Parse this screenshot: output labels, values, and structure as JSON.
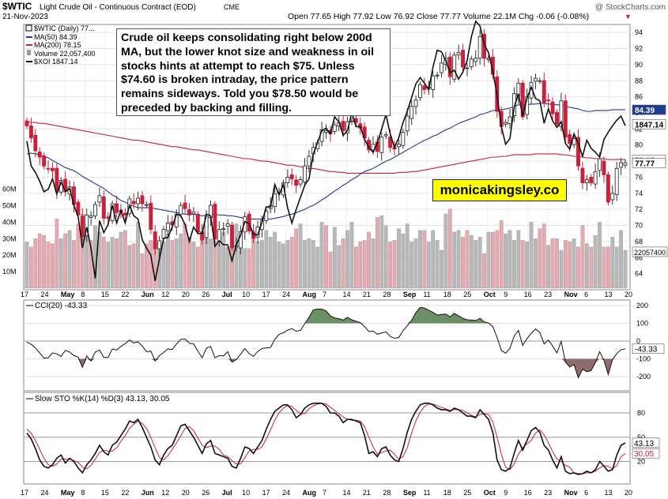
{
  "header": {
    "symbol": "$WTIC",
    "name": "Light Crude Oil - Continuous Contract (EOD)",
    "exchange": "CME",
    "date": "21-Nov-2023",
    "watermark": "@ StockCharts.com",
    "quote": "Open 77.65  High 77.92  Low 76.92  Close 77.77  Volume 22.1M  Chg -0.06 (-0.08%)",
    "chg_marker": "▼"
  },
  "legend": {
    "price": "$WTIC (Daily) 77...",
    "ma50": "MA(50) 84.39",
    "ma200": "MA(200) 78.15",
    "volume": "Volume 22,057,400",
    "xoi": "$XOI 1847.14"
  },
  "annotation": "Crude oil keeps consolidating right below 200d MA, but the lower knot size and weakness in oil stocks hints at attempt to reach $75. Unless $74.60 is broken intraday, the price pattern remains sideways. Told you $78.50 would be preceded by backing and filling.",
  "brand": "monicakingsley.co",
  "colors": {
    "up": "#333333",
    "down": "#cc1f3a",
    "ma50": "#1f3a93",
    "ma200": "#cc1f3a",
    "vol_up": "#b8b8b8",
    "vol_down": "#e8a8b0",
    "cci_fill": "#6d8f66",
    "cci_neg": "#8f6d6d"
  },
  "chart_data": [
    {
      "type": "candlestick",
      "title": "$WTIC",
      "ylim": [
        62,
        95
      ],
      "y_ticks": [
        "64",
        "66",
        "68",
        "70",
        "72",
        "74",
        "76",
        "78",
        "80",
        "82",
        "84",
        "86",
        "88",
        "90",
        "92",
        "94"
      ],
      "price_badges": [
        "84.39",
        "1847.14",
        "78.15",
        "77.77"
      ],
      "volume_ticks": [
        "10M",
        "20M",
        "30M",
        "40M",
        "50M",
        "60M"
      ],
      "volume_badge": "22057400",
      "x_labels": [
        "17",
        "24",
        "May",
        "8",
        "15",
        "22",
        "Jun",
        "12",
        "20",
        "26",
        "Jul",
        "10",
        "17",
        "24",
        "Aug",
        "7",
        "14",
        "21",
        "28",
        "Sep",
        "11",
        "18",
        "25",
        "Oct",
        "9",
        "16",
        "23",
        "Nov",
        "6",
        "13",
        "20"
      ],
      "daily_closes": [
        82.4,
        80.9,
        79.3,
        78.5,
        77.4,
        77.1,
        76.8,
        74.3,
        75.6,
        74.2,
        74.8,
        72.6,
        71.3,
        68.6,
        71.3,
        71.2,
        72.6,
        73.7,
        70.9,
        70.9,
        72.7,
        71.6,
        71.7,
        71.3,
        73.3,
        72.7,
        73.4,
        72.7,
        72.6,
        69.5,
        67.1,
        68.1,
        69.5,
        70.3,
        70.1,
        71.4,
        72.5,
        72.1,
        71.3,
        71.7,
        69.2,
        68.2,
        71.1,
        72.5,
        68.3,
        69.5,
        69.6,
        70.2,
        67.2,
        67.5,
        69.2,
        71.1,
        69.3,
        68.4,
        69.8,
        70.6,
        71.8,
        72.5,
        73.9,
        74.1,
        75.3,
        76.0,
        75.8,
        75.0,
        75.7,
        77.4,
        78.6,
        79.7,
        80.3,
        81.9,
        81.8,
        81.4,
        82.5,
        82.8,
        81.8,
        82.9,
        83.0,
        82.8,
        82.1,
        80.9,
        79.4,
        80.1,
        79.2,
        81.0,
        81.3,
        79.7,
        79.5,
        80.1,
        81.6,
        83.6,
        84.8,
        85.6,
        87.5,
        86.9,
        87.2,
        88.6,
        88.7,
        90.2,
        90.8,
        88.5,
        91.2,
        91.5,
        89.7,
        89.6,
        90.7,
        90.8,
        93.5,
        90.8,
        90.8,
        88.8,
        84.2,
        82.3,
        82.8,
        83.5,
        86.4,
        87.7,
        83.5,
        86.0,
        87.8,
        88.3,
        88.0,
        85.3,
        85.5,
        83.9,
        82.6,
        85.5,
        81.0,
        80.2,
        80.8,
        77.4,
        75.3,
        75.7,
        75.3,
        76.7,
        78.3,
        76.3,
        72.9,
        74.0,
        77.1,
        77.8,
        77.8
      ],
      "ma50": [
        78.9,
        79.0,
        78.9,
        78.8,
        78.6,
        78.4,
        78.1,
        77.8,
        77.5,
        77.2,
        77.0,
        76.8,
        76.5,
        76.1,
        75.8,
        75.5,
        75.2,
        74.9,
        74.6,
        74.2,
        73.8,
        73.5,
        73.1,
        72.9,
        72.6,
        72.4,
        72.2,
        72.2,
        72.2,
        72.2,
        72.1,
        72.0,
        71.9,
        71.8,
        71.7,
        71.6,
        71.5,
        71.4,
        71.4,
        71.4,
        71.3,
        71.2,
        71.3,
        71.4,
        71.4,
        71.3,
        71.3,
        71.2,
        71.2,
        71.1,
        71.0,
        70.9,
        70.8,
        70.8,
        70.8,
        70.8,
        70.8,
        70.8,
        70.9,
        71.0,
        71.1,
        71.3,
        71.4,
        71.6,
        71.8,
        72.0,
        72.3,
        72.5,
        72.8,
        73.2,
        73.5,
        73.9,
        74.3,
        74.6,
        75.0,
        75.3,
        75.7,
        76.0,
        76.4,
        76.7,
        76.9,
        77.1,
        77.4,
        77.7,
        78.0,
        78.2,
        78.5,
        78.8,
        79.1,
        79.4,
        79.7,
        80.0,
        80.3,
        80.6,
        80.8,
        81.1,
        81.3,
        81.6,
        81.9,
        82.1,
        82.4,
        82.7,
        82.9,
        83.1,
        83.3,
        83.5,
        83.8,
        83.9,
        84.1,
        84.3,
        84.3,
        84.4,
        84.5,
        84.6,
        84.8,
        85.0,
        85.0,
        85.0,
        85.1,
        85.1,
        85.2,
        85.2,
        85.1,
        85.1,
        85.0,
        85.0,
        84.8,
        84.7,
        84.6,
        84.5,
        84.3,
        84.2,
        84.2,
        84.3,
        84.3,
        84.3,
        84.3,
        84.4,
        84.4,
        84.4,
        84.4
      ],
      "ma200": [
        82.9,
        82.8,
        82.8,
        82.7,
        82.7,
        82.6,
        82.5,
        82.4,
        82.3,
        82.2,
        82.1,
        82.0,
        81.9,
        81.8,
        81.7,
        81.6,
        81.5,
        81.4,
        81.3,
        81.2,
        81.1,
        81.0,
        80.9,
        80.8,
        80.7,
        80.6,
        80.6,
        80.5,
        80.4,
        80.3,
        80.2,
        80.1,
        80.0,
        79.9,
        79.8,
        79.8,
        79.7,
        79.6,
        79.5,
        79.4,
        79.4,
        79.3,
        79.2,
        79.1,
        79.0,
        78.9,
        78.8,
        78.7,
        78.6,
        78.5,
        78.4,
        78.3,
        78.3,
        78.2,
        78.1,
        78.0,
        78.0,
        77.9,
        77.8,
        77.7,
        77.6,
        77.5,
        77.5,
        77.4,
        77.3,
        77.2,
        77.1,
        77.1,
        77.0,
        76.9,
        76.8,
        76.7,
        76.7,
        76.6,
        76.6,
        76.5,
        76.5,
        76.5,
        76.5,
        76.5,
        76.5,
        76.5,
        76.5,
        76.5,
        76.5,
        76.5,
        76.5,
        76.6,
        76.6,
        76.6,
        76.7,
        76.7,
        76.8,
        76.9,
        77.0,
        77.1,
        77.2,
        77.3,
        77.4,
        77.5,
        77.6,
        77.7,
        77.8,
        77.9,
        78.0,
        78.1,
        78.2,
        78.3,
        78.4,
        78.5,
        78.5,
        78.6,
        78.6,
        78.7,
        78.8,
        78.8,
        78.8,
        78.8,
        78.8,
        78.9,
        78.9,
        78.9,
        78.9,
        78.9,
        78.9,
        78.8,
        78.8,
        78.7,
        78.6,
        78.6,
        78.5,
        78.4,
        78.4,
        78.3,
        78.3,
        78.3,
        78.2,
        78.2,
        78.2,
        78.2,
        78.2
      ],
      "xoi_overlay": [
        80.5,
        77.4,
        76.6,
        75.5,
        74.2,
        74.5,
        75.8,
        73.9,
        75.4,
        74.2,
        74.6,
        72.5,
        71.1,
        67.2,
        69.8,
        67.2,
        63.4,
        70.6,
        69.1,
        70.1,
        72.5,
        70.3,
        71.9,
        70.3,
        72.5,
        71.2,
        70.8,
        68.2,
        67.2,
        66.3,
        63.1,
        65.8,
        68.4,
        68.5,
        69.8,
        71.4,
        71.2,
        70.1,
        68.0,
        69.8,
        69.0,
        69.0,
        71.4,
        71.2,
        67.4,
        68.1,
        67.6,
        67.6,
        65.6,
        67.6,
        68.8,
        70.5,
        70.2,
        68.9,
        68.8,
        70.4,
        72.3,
        72.3,
        75.1,
        73.8,
        75.1,
        72.2,
        70.3,
        72.0,
        73.5,
        75.0,
        75.8,
        78.9,
        80.3,
        81.8,
        82.1,
        81.4,
        83.5,
        82.9,
        81.2,
        81.8,
        84.0,
        82.3,
        82.3,
        80.7,
        79.7,
        79.1,
        80.3,
        82.0,
        83.8,
        81.4,
        79.7,
        80.9,
        82.8,
        84.2,
        85.9,
        87.6,
        88.4,
        87.7,
        86.9,
        89.7,
        91.8,
        91.6,
        90.5,
        89.0,
        89.3,
        88.2,
        89.1,
        90.5,
        93.5,
        95.4,
        94.8,
        92.5,
        91.5,
        89.2,
        86.2,
        82.3,
        80.1,
        80.8,
        84.7,
        86.4,
        83.6,
        85.8,
        87.2,
        85.8,
        85.5,
        82.7,
        84.5,
        83.0,
        82.2,
        82.9,
        80.2,
        79.5,
        81.4,
        80.2,
        78.6,
        80.6,
        79.6,
        79.1,
        78.5,
        80.7,
        81.6,
        82.4,
        83.1,
        83.6,
        82.4
      ],
      "volume_m": [
        28,
        25,
        30,
        33,
        32,
        28,
        27,
        42,
        30,
        33,
        35,
        29,
        39,
        45,
        40,
        29,
        38,
        34,
        31,
        28,
        31,
        30,
        34,
        35,
        26,
        27,
        40,
        21,
        27,
        29,
        26,
        27,
        28,
        33,
        29,
        30,
        33,
        39,
        31,
        28,
        25,
        32,
        37,
        30,
        28,
        27,
        34,
        25,
        30,
        39,
        28,
        24,
        24,
        35,
        28,
        29,
        35,
        31,
        34,
        28,
        27,
        29,
        31,
        36,
        39,
        29,
        30,
        29,
        25,
        40,
        38,
        22,
        37,
        26,
        30,
        35,
        40,
        25,
        28,
        29,
        34,
        30,
        43,
        44,
        38,
        28,
        29,
        36,
        33,
        39,
        28,
        30,
        35,
        35,
        28,
        35,
        29,
        23,
        45,
        48,
        34,
        35,
        31,
        35,
        32,
        29,
        31,
        21,
        34,
        34,
        35,
        41,
        33,
        35,
        29,
        35,
        29,
        28,
        40,
        30,
        36,
        39,
        26,
        30,
        30,
        23,
        29,
        28,
        30,
        25,
        38,
        27,
        25,
        32,
        40,
        25,
        25,
        31,
        25,
        35,
        23
      ]
    },
    {
      "type": "line",
      "title": "CCI(20) -43.33",
      "ylim": [
        -250,
        250
      ],
      "y_ticks": [
        "200",
        "100",
        "0",
        "-100",
        "-200"
      ],
      "badge": "-43.33",
      "series": [
        {
          "name": "CCI(20)",
          "values": [
            -6,
            -18,
            -38,
            -66,
            -96,
            -94,
            -66,
            -72,
            -86,
            -52,
            -62,
            -82,
            -90,
            -148,
            -84,
            -112,
            -62,
            -50,
            -92,
            -92,
            -44,
            -50,
            -30,
            -14,
            6,
            -10,
            -4,
            -28,
            -60,
            -56,
            -112,
            -82,
            -64,
            -44,
            -48,
            -16,
            10,
            12,
            -12,
            -16,
            -56,
            -94,
            -40,
            -30,
            -94,
            -82,
            -84,
            -60,
            -118,
            -104,
            -74,
            -42,
            -70,
            -86,
            -58,
            -42,
            -38,
            -36,
            10,
            38,
            46,
            62,
            70,
            56,
            60,
            98,
            134,
            176,
            180,
            180,
            170,
            142,
            130,
            126,
            118,
            134,
            120,
            112,
            104,
            82,
            54,
            56,
            38,
            46,
            52,
            26,
            16,
            20,
            58,
            86,
            116,
            160,
            190,
            186,
            174,
            162,
            146,
            150,
            152,
            136,
            156,
            142,
            128,
            120,
            118,
            116,
            128,
            108,
            102,
            82,
            20,
            -52,
            -68,
            -42,
            28,
            60,
            -24,
            14,
            44,
            68,
            48,
            -16,
            6,
            -28,
            -66,
            -2,
            -118,
            -146,
            -132,
            -206,
            -158,
            -172,
            -166,
            -120,
            -60,
            -108,
            -188,
            -104,
            -70,
            -48,
            -43
          ]
        }
      ]
    },
    {
      "type": "line",
      "title": "Slow STO %K(14) %D(3) 43.13, 30.05",
      "ylim": [
        0,
        100
      ],
      "y_ticks": [
        "80",
        "50",
        "20"
      ],
      "badges": [
        "43.13",
        "30.05"
      ],
      "series": [
        {
          "name": "%K(14)",
          "values": [
            55,
            48,
            36,
            22,
            14,
            12,
            16,
            24,
            28,
            18,
            24,
            20,
            12,
            6,
            16,
            22,
            30,
            40,
            32,
            28,
            40,
            44,
            52,
            60,
            70,
            68,
            72,
            62,
            50,
            38,
            22,
            16,
            28,
            36,
            40,
            52,
            64,
            66,
            58,
            50,
            40,
            30,
            42,
            46,
            30,
            28,
            26,
            24,
            14,
            12,
            24,
            38,
            36,
            30,
            38,
            46,
            60,
            72,
            82,
            86,
            90,
            90,
            84,
            74,
            78,
            86,
            90,
            92,
            92,
            92,
            88,
            80,
            80,
            76,
            68,
            72,
            72,
            70,
            68,
            52,
            30,
            32,
            26,
            36,
            38,
            28,
            22,
            20,
            36,
            56,
            72,
            82,
            90,
            92,
            92,
            90,
            86,
            84,
            84,
            82,
            86,
            84,
            80,
            76,
            76,
            74,
            84,
            78,
            72,
            56,
            22,
            10,
            8,
            12,
            30,
            46,
            34,
            46,
            58,
            62,
            56,
            40,
            34,
            22,
            12,
            26,
            8,
            5,
            6,
            4,
            5,
            8,
            6,
            10,
            20,
            14,
            8,
            10,
            28,
            40,
            43
          ]
        },
        {
          "name": "%D(3)",
          "values": [
            60,
            55,
            46,
            35,
            24,
            16,
            14,
            17,
            23,
            23,
            23,
            21,
            19,
            13,
            11,
            15,
            23,
            31,
            34,
            33,
            33,
            37,
            45,
            52,
            61,
            66,
            70,
            67,
            61,
            50,
            37,
            25,
            22,
            27,
            35,
            43,
            52,
            61,
            63,
            58,
            49,
            40,
            37,
            39,
            39,
            35,
            28,
            26,
            21,
            17,
            17,
            25,
            33,
            35,
            35,
            38,
            48,
            59,
            71,
            80,
            86,
            89,
            88,
            83,
            79,
            79,
            85,
            89,
            91,
            92,
            91,
            87,
            83,
            79,
            75,
            72,
            71,
            71,
            70,
            63,
            50,
            38,
            29,
            31,
            33,
            34,
            29,
            23,
            26,
            37,
            55,
            70,
            81,
            88,
            91,
            91,
            89,
            87,
            85,
            83,
            84,
            84,
            83,
            80,
            77,
            75,
            78,
            79,
            78,
            69,
            50,
            29,
            13,
            10,
            17,
            29,
            37,
            42,
            46,
            55,
            59,
            53,
            43,
            32,
            23,
            20,
            15,
            13,
            6,
            5,
            5,
            6,
            6,
            8,
            12,
            15,
            14,
            11,
            15,
            26,
            30
          ]
        }
      ]
    }
  ]
}
